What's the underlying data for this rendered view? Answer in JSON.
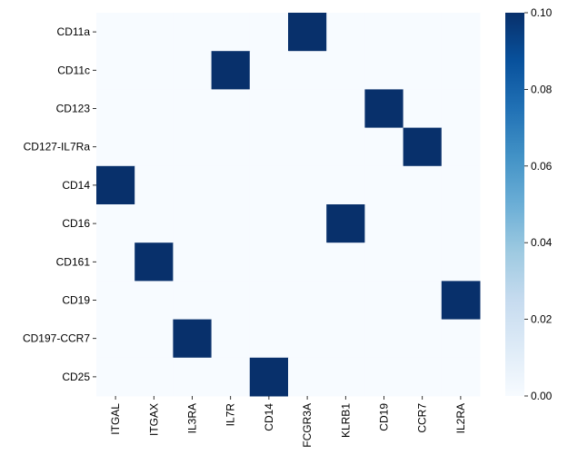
{
  "chart_data": {
    "type": "heatmap",
    "title": "",
    "xlabel": "",
    "ylabel": "",
    "x_categories": [
      "ITGAL",
      "ITGAX",
      "IL3RA",
      "IL7R",
      "CD14",
      "FCGR3A",
      "KLRB1",
      "CD19",
      "CCR7",
      "IL2RA"
    ],
    "y_categories": [
      "CD11a",
      "CD11c",
      "CD123",
      "CD127-IL7Ra",
      "CD14",
      "CD16",
      "CD161",
      "CD19",
      "CD197-CCR7",
      "CD25"
    ],
    "values": [
      [
        0,
        0,
        0,
        0,
        0,
        0.1,
        0,
        0,
        0,
        0
      ],
      [
        0,
        0,
        0,
        0.1,
        0,
        0,
        0,
        0,
        0,
        0
      ],
      [
        0,
        0,
        0,
        0,
        0,
        0,
        0,
        0.1,
        0,
        0
      ],
      [
        0,
        0,
        0,
        0,
        0,
        0,
        0,
        0,
        0.1,
        0
      ],
      [
        0.1,
        0,
        0,
        0,
        0,
        0,
        0,
        0,
        0,
        0
      ],
      [
        0,
        0,
        0,
        0,
        0,
        0,
        0.1,
        0,
        0,
        0
      ],
      [
        0,
        0.1,
        0,
        0,
        0,
        0,
        0,
        0,
        0,
        0
      ],
      [
        0,
        0,
        0,
        0,
        0,
        0,
        0,
        0,
        0,
        0.1
      ],
      [
        0,
        0,
        0.1,
        0,
        0,
        0,
        0,
        0,
        0,
        0
      ],
      [
        0,
        0,
        0,
        0,
        0.1,
        0,
        0,
        0,
        0,
        0
      ]
    ],
    "colormap": "Blues",
    "colormap_stops": [
      "#f7fbff",
      "#deebf7",
      "#c6dbef",
      "#9ecae1",
      "#6baed6",
      "#4292c6",
      "#2171b5",
      "#08519c",
      "#08306b"
    ],
    "vmin": 0,
    "vmax": 0.1,
    "colorbar_ticks": [
      "0.00",
      "0.02",
      "0.04",
      "0.06",
      "0.08",
      "0.10"
    ],
    "grid": false
  }
}
